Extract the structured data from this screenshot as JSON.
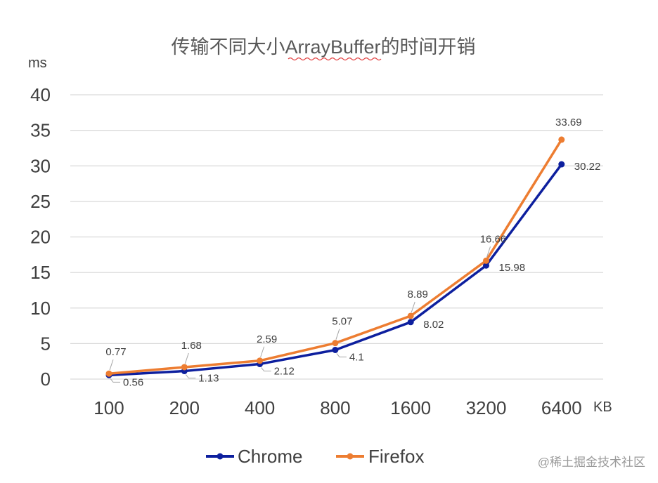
{
  "chart_data": {
    "type": "line",
    "title": "传输不同大小ArrayBuffer的时间开销",
    "ylabel": "ms",
    "xlabel": "KB",
    "categories": [
      "100",
      "200",
      "400",
      "800",
      "1600",
      "3200",
      "6400"
    ],
    "ylim": [
      0,
      40
    ],
    "yticks": [
      0,
      5,
      10,
      15,
      20,
      25,
      30,
      35,
      40
    ],
    "grid": true,
    "legend": "bottom",
    "series": [
      {
        "name": "Chrome",
        "color": "#0d1f9e",
        "values": [
          0.56,
          1.13,
          2.12,
          4.1,
          8.02,
          15.98,
          30.22
        ]
      },
      {
        "name": "Firefox",
        "color": "#ed7d31",
        "values": [
          0.77,
          1.68,
          2.59,
          5.07,
          8.89,
          16.66,
          33.69
        ]
      }
    ]
  },
  "watermark": "@稀土掘金技术社区"
}
